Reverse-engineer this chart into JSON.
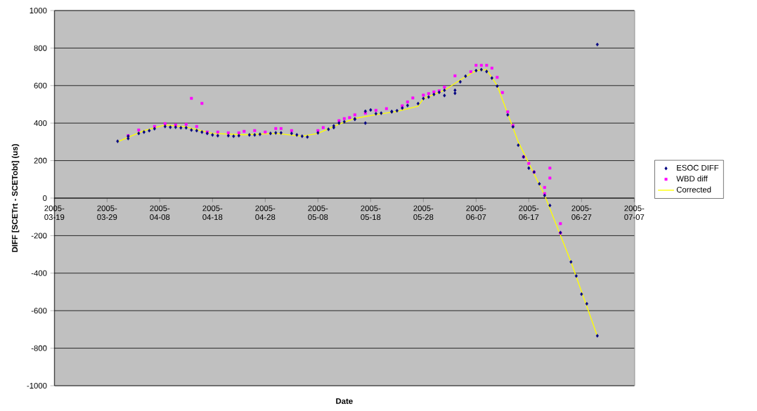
{
  "chart_data": {
    "type": "scatter",
    "xlabel": "Date",
    "ylabel": "DIFF [SCETrt - SCETobt] (us)",
    "xlim": [
      "2005-03-19",
      "2005-07-07"
    ],
    "xticks": [
      "2005-03-19",
      "2005-03-29",
      "2005-04-08",
      "2005-04-18",
      "2005-04-28",
      "2005-05-08",
      "2005-05-18",
      "2005-05-28",
      "2005-06-07",
      "2005-06-17",
      "2005-06-27",
      "2005-07-07"
    ],
    "ylim": [
      -1000,
      1000
    ],
    "yticks": [
      -1000,
      -800,
      -600,
      -400,
      -200,
      0,
      200,
      400,
      600,
      800,
      1000
    ],
    "grid": "y",
    "legend": "right",
    "series": [
      {
        "name": "ESOC DIFF",
        "marker": "diamond",
        "color": "#000080",
        "x": [
          "2005-03-31",
          "2005-04-02",
          "2005-04-02",
          "2005-04-04",
          "2005-04-05",
          "2005-04-06",
          "2005-04-07",
          "2005-04-09",
          "2005-04-10",
          "2005-04-11",
          "2005-04-12",
          "2005-04-13",
          "2005-04-14",
          "2005-04-15",
          "2005-04-16",
          "2005-04-17",
          "2005-04-18",
          "2005-04-19",
          "2005-04-21",
          "2005-04-22",
          "2005-04-23",
          "2005-04-25",
          "2005-04-26",
          "2005-04-27",
          "2005-04-29",
          "2005-04-30",
          "2005-05-01",
          "2005-05-03",
          "2005-05-04",
          "2005-05-05",
          "2005-05-06",
          "2005-05-08",
          "2005-05-10",
          "2005-05-11",
          "2005-05-11",
          "2005-05-12",
          "2005-05-13",
          "2005-05-15",
          "2005-05-15",
          "2005-05-17",
          "2005-05-17",
          "2005-05-18",
          "2005-05-19",
          "2005-05-20",
          "2005-05-22",
          "2005-05-22",
          "2005-05-23",
          "2005-05-24",
          "2005-05-25",
          "2005-05-27",
          "2005-05-28",
          "2005-05-29",
          "2005-05-30",
          "2005-05-31",
          "2005-06-01",
          "2005-06-01",
          "2005-06-03",
          "2005-06-03",
          "2005-06-04",
          "2005-06-05",
          "2005-06-07",
          "2005-06-08",
          "2005-06-09",
          "2005-06-10",
          "2005-06-11",
          "2005-06-13",
          "2005-06-14",
          "2005-06-15",
          "2005-06-16",
          "2005-06-17",
          "2005-06-18",
          "2005-06-19",
          "2005-06-20",
          "2005-06-21",
          "2005-06-23",
          "2005-06-25",
          "2005-06-26",
          "2005-06-27",
          "2005-06-28",
          "2005-06-30",
          "2005-06-30"
        ],
        "values": [
          303,
          318,
          330,
          345,
          352,
          360,
          370,
          382,
          378,
          378,
          375,
          375,
          363,
          360,
          352,
          345,
          337,
          333,
          333,
          330,
          333,
          337,
          337,
          340,
          345,
          348,
          348,
          345,
          337,
          330,
          326,
          348,
          367,
          376,
          385,
          400,
          407,
          420,
          422,
          400,
          463,
          470,
          450,
          453,
          460,
          462,
          466,
          480,
          494,
          504,
          531,
          539,
          553,
          564,
          575,
          547,
          559,
          575,
          620,
          650,
          680,
          685,
          675,
          640,
          597,
          444,
          380,
          282,
          220,
          160,
          139,
          76,
          14,
          -39,
          -184,
          -340,
          -415,
          -512,
          -563,
          -734,
          819
        ]
      },
      {
        "name": "WBD diff",
        "marker": "square",
        "color": "#ff00ff",
        "x": [
          "2005-04-02",
          "2005-04-04",
          "2005-04-07",
          "2005-04-09",
          "2005-04-11",
          "2005-04-13",
          "2005-04-14",
          "2005-04-15",
          "2005-04-16",
          "2005-04-17",
          "2005-04-19",
          "2005-04-21",
          "2005-04-23",
          "2005-04-24",
          "2005-04-26",
          "2005-04-28",
          "2005-04-30",
          "2005-05-01",
          "2005-05-03",
          "2005-05-08",
          "2005-05-09",
          "2005-05-12",
          "2005-05-13",
          "2005-05-14",
          "2005-05-15",
          "2005-05-17",
          "2005-05-19",
          "2005-05-21",
          "2005-05-24",
          "2005-05-25",
          "2005-05-26",
          "2005-05-28",
          "2005-05-29",
          "2005-05-30",
          "2005-05-31",
          "2005-06-01",
          "2005-06-03",
          "2005-06-06",
          "2005-06-07",
          "2005-06-08",
          "2005-06-09",
          "2005-06-10",
          "2005-06-11",
          "2005-06-12",
          "2005-06-13",
          "2005-06-14",
          "2005-06-16",
          "2005-06-17",
          "2005-06-18",
          "2005-06-20",
          "2005-06-20",
          "2005-06-21",
          "2005-06-21",
          "2005-06-23",
          "2005-06-23"
        ],
        "values": [
          333,
          363,
          382,
          397,
          390,
          393,
          532,
          382,
          505,
          352,
          352,
          348,
          348,
          356,
          360,
          352,
          371,
          371,
          360,
          360,
          376,
          413,
          424,
          429,
          444,
          453,
          468,
          477,
          492,
          513,
          534,
          549,
          557,
          566,
          572,
          592,
          652,
          674,
          708,
          708,
          708,
          693,
          644,
          563,
          460,
          387,
          220,
          185,
          139,
          57,
          24,
          160,
          107,
          -136,
          -186
        ]
      },
      {
        "name": "Corrected",
        "type": "line",
        "marker": "none",
        "line_style": "solid",
        "color": "#ffff00",
        "x": [
          "2005-03-31",
          "2005-04-05",
          "2005-04-09",
          "2005-04-13",
          "2005-04-18",
          "2005-04-24",
          "2005-04-30",
          "2005-05-05",
          "2005-05-08",
          "2005-05-12",
          "2005-05-15",
          "2005-05-19",
          "2005-05-23",
          "2005-05-27",
          "2005-05-28",
          "2005-06-01",
          "2005-06-04",
          "2005-06-07",
          "2005-06-09",
          "2005-06-11",
          "2005-06-15",
          "2005-06-20",
          "2005-06-25",
          "2005-06-30"
        ],
        "values": [
          300,
          360,
          390,
          380,
          345,
          338,
          345,
          330,
          345,
          395,
          425,
          445,
          462,
          490,
          530,
          575,
          630,
          680,
          685,
          600,
          300,
          15,
          -340,
          -735
        ]
      }
    ]
  }
}
